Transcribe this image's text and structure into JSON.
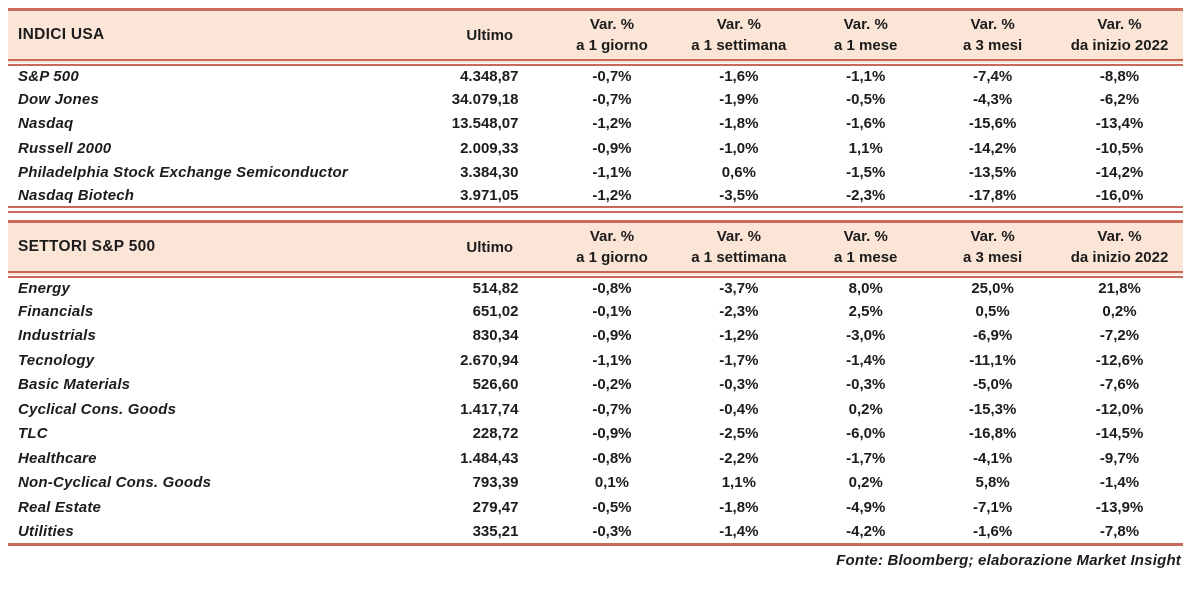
{
  "chart_data": [
    {
      "type": "table",
      "title": "INDICI USA",
      "header": {
        "ultimo": "Ultimo",
        "var": "Var. %",
        "periods": [
          "a 1 giorno",
          "a 1 settimana",
          "a 1 mese",
          "a 3 mesi",
          "da inizio 2022"
        ]
      },
      "rows": [
        {
          "name": "S&P 500",
          "ultimo": "4.348,87",
          "vars": [
            "-0,7%",
            "-1,6%",
            "-1,1%",
            "-7,4%",
            "-8,8%"
          ]
        },
        {
          "name": "Dow Jones",
          "ultimo": "34.079,18",
          "vars": [
            "-0,7%",
            "-1,9%",
            "-0,5%",
            "-4,3%",
            "-6,2%"
          ]
        },
        {
          "name": "Nasdaq",
          "ultimo": "13.548,07",
          "vars": [
            "-1,2%",
            "-1,8%",
            "-1,6%",
            "-15,6%",
            "-13,4%"
          ]
        },
        {
          "name": "Russell 2000",
          "ultimo": "2.009,33",
          "vars": [
            "-0,9%",
            "-1,0%",
            "1,1%",
            "-14,2%",
            "-10,5%"
          ]
        },
        {
          "name": "Philadelphia Stock Exchange Semiconductor",
          "ultimo": "3.384,30",
          "vars": [
            "-1,1%",
            "0,6%",
            "-1,5%",
            "-13,5%",
            "-14,2%"
          ]
        },
        {
          "name": "Nasdaq Biotech",
          "ultimo": "3.971,05",
          "vars": [
            "-1,2%",
            "-3,5%",
            "-2,3%",
            "-17,8%",
            "-16,0%"
          ]
        }
      ]
    },
    {
      "type": "table",
      "title": "SETTORI S&P 500",
      "header": {
        "ultimo": "Ultimo",
        "var": "Var. %",
        "periods": [
          "a 1 giorno",
          "a 1 settimana",
          "a 1 mese",
          "a 3 mesi",
          "da inizio 2022"
        ]
      },
      "rows": [
        {
          "name": "Energy",
          "ultimo": "514,82",
          "vars": [
            "-0,8%",
            "-3,7%",
            "8,0%",
            "25,0%",
            "21,8%"
          ]
        },
        {
          "name": "Financials",
          "ultimo": "651,02",
          "vars": [
            "-0,1%",
            "-2,3%",
            "2,5%",
            "0,5%",
            "0,2%"
          ]
        },
        {
          "name": "Industrials",
          "ultimo": "830,34",
          "vars": [
            "-0,9%",
            "-1,2%",
            "-3,0%",
            "-6,9%",
            "-7,2%"
          ]
        },
        {
          "name": "Tecnology",
          "ultimo": "2.670,94",
          "vars": [
            "-1,1%",
            "-1,7%",
            "-1,4%",
            "-11,1%",
            "-12,6%"
          ]
        },
        {
          "name": "Basic Materials",
          "ultimo": "526,60",
          "vars": [
            "-0,2%",
            "-0,3%",
            "-0,3%",
            "-5,0%",
            "-7,6%"
          ]
        },
        {
          "name": "Cyclical Cons. Goods",
          "ultimo": "1.417,74",
          "vars": [
            "-0,7%",
            "-0,4%",
            "0,2%",
            "-15,3%",
            "-12,0%"
          ]
        },
        {
          "name": "TLC",
          "ultimo": "228,72",
          "vars": [
            "-0,9%",
            "-2,5%",
            "-6,0%",
            "-16,8%",
            "-14,5%"
          ]
        },
        {
          "name": "Healthcare",
          "ultimo": "1.484,43",
          "vars": [
            "-0,8%",
            "-2,2%",
            "-1,7%",
            "-4,1%",
            "-9,7%"
          ]
        },
        {
          "name": "Non-Cyclical Cons. Goods",
          "ultimo": "793,39",
          "vars": [
            "0,1%",
            "1,1%",
            "0,2%",
            "5,8%",
            "-1,4%"
          ]
        },
        {
          "name": "Real Estate",
          "ultimo": "279,47",
          "vars": [
            "-0,5%",
            "-1,8%",
            "-4,9%",
            "-7,1%",
            "-13,9%"
          ]
        },
        {
          "name": "Utilities",
          "ultimo": "335,21",
          "vars": [
            "-0,3%",
            "-1,4%",
            "-4,2%",
            "-1,6%",
            "-7,8%"
          ]
        }
      ]
    }
  ],
  "footer": "Fonte: Bloomberg; elaborazione Market Insight",
  "colors": {
    "accent": "#c8695a",
    "header_bg": "#fbe5d6",
    "text": "#1c1c1c"
  }
}
